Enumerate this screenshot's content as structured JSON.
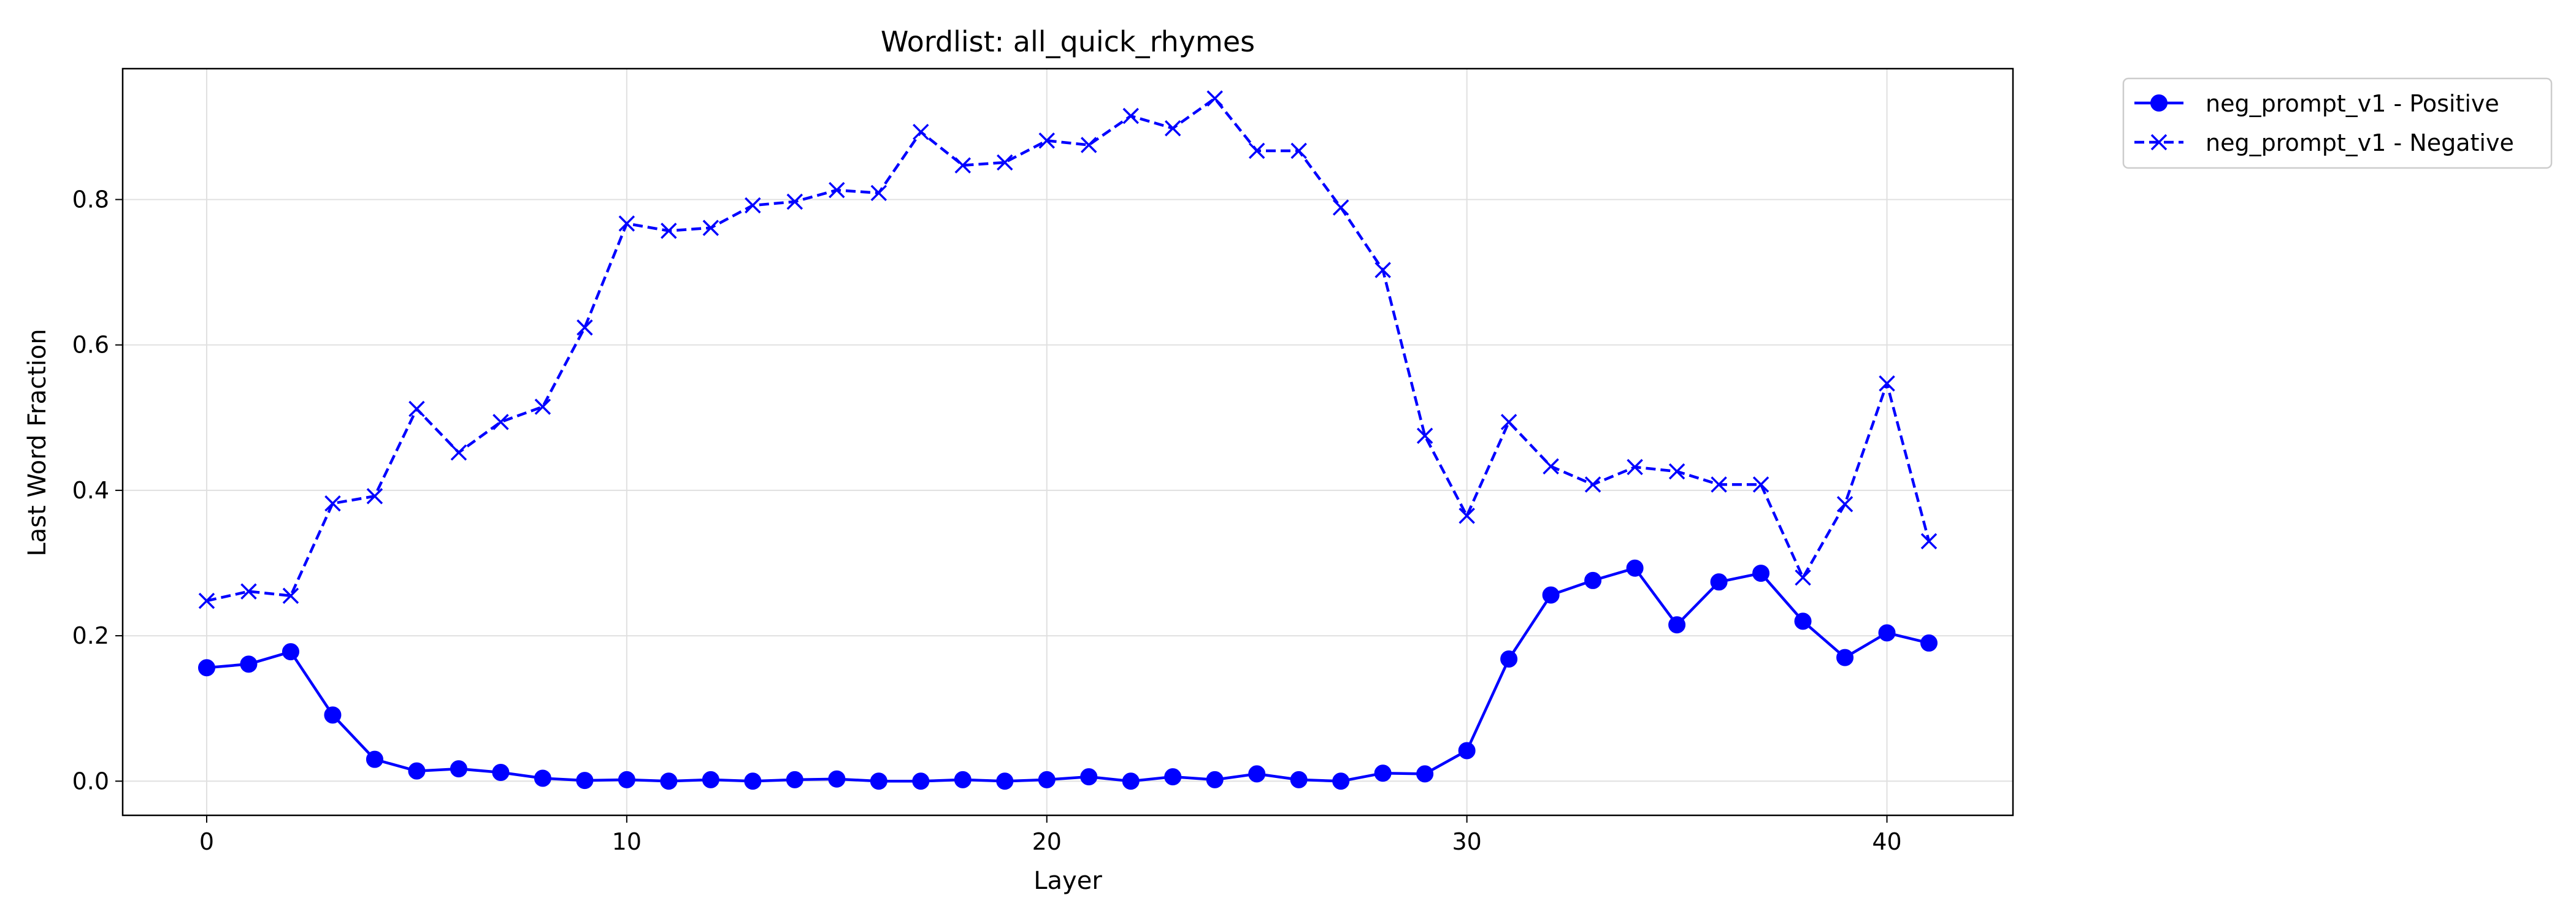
{
  "chart_data": {
    "type": "line",
    "title": "Wordlist: all_quick_rhymes",
    "xlabel": "Layer",
    "ylabel": "Last Word Fraction",
    "xlim": [
      -2,
      43
    ],
    "ylim": [
      -0.047,
      0.98
    ],
    "x_ticks": [
      0,
      10,
      20,
      30,
      40
    ],
    "y_ticks": [
      0.0,
      0.2,
      0.4,
      0.6,
      0.8
    ],
    "grid": true,
    "legend_position": "outside top-right",
    "x": [
      0,
      1,
      2,
      3,
      4,
      5,
      6,
      7,
      8,
      9,
      10,
      11,
      12,
      13,
      14,
      15,
      16,
      17,
      18,
      19,
      20,
      21,
      22,
      23,
      24,
      25,
      26,
      27,
      28,
      29,
      30,
      31,
      32,
      33,
      34,
      35,
      36,
      37,
      38,
      39,
      40,
      41
    ],
    "series": [
      {
        "name": "neg_prompt_v1 - Positive",
        "color": "#0000ff",
        "marker": "circle",
        "line_style": "solid",
        "values": [
          0.156,
          0.161,
          0.178,
          0.091,
          0.03,
          0.014,
          0.017,
          0.012,
          0.004,
          0.001,
          0.002,
          0.0,
          0.002,
          0.0,
          0.002,
          0.003,
          0.0,
          0.0,
          0.002,
          0.0,
          0.002,
          0.006,
          0.0,
          0.006,
          0.002,
          0.01,
          0.002,
          0.0,
          0.011,
          0.01,
          0.042,
          0.168,
          0.256,
          0.276,
          0.293,
          0.215,
          0.274,
          0.286,
          0.22,
          0.17,
          0.204,
          0.19
        ]
      },
      {
        "name": "neg_prompt_v1 - Negative",
        "color": "#0000ff",
        "marker": "x",
        "line_style": "dashed",
        "values": [
          0.248,
          0.261,
          0.255,
          0.382,
          0.392,
          0.512,
          0.452,
          0.494,
          0.515,
          0.624,
          0.767,
          0.757,
          0.761,
          0.792,
          0.797,
          0.813,
          0.809,
          0.893,
          0.847,
          0.851,
          0.881,
          0.875,
          0.915,
          0.898,
          0.939,
          0.867,
          0.867,
          0.789,
          0.703,
          0.475,
          0.365,
          0.494,
          0.433,
          0.408,
          0.432,
          0.426,
          0.408,
          0.408,
          0.28,
          0.381,
          0.547,
          0.33
        ]
      }
    ]
  }
}
